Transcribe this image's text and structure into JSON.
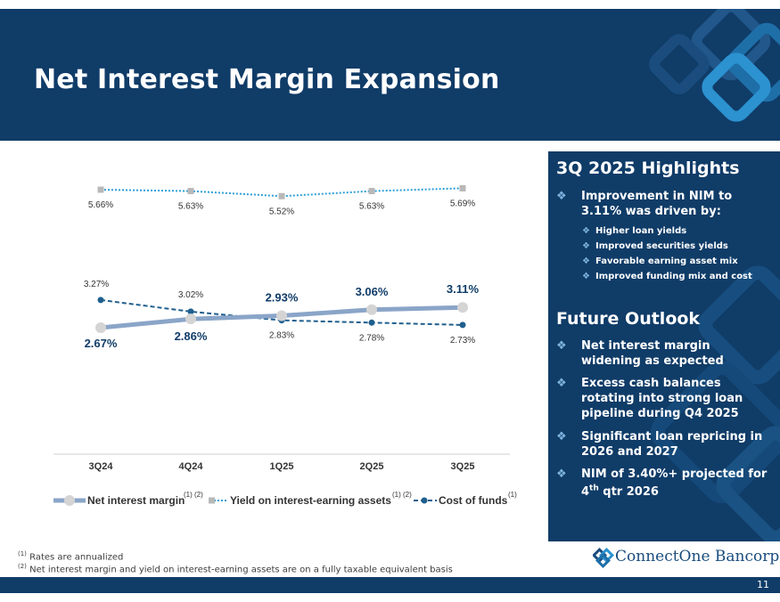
{
  "slide": {
    "title": "Net Interest Margin Expansion",
    "page_number": "11"
  },
  "chart_data": {
    "type": "line",
    "categories": [
      "3Q24",
      "4Q24",
      "1Q25",
      "2Q25",
      "3Q25"
    ],
    "series": [
      {
        "name": "Net interest margin",
        "superscript": "(1) (2)",
        "values": [
          2.67,
          2.86,
          2.93,
          3.06,
          3.11
        ],
        "labels": [
          "2.67%",
          "2.86%",
          "2.93%",
          "3.06%",
          "3.11%"
        ],
        "color": "#8aa5c8",
        "style": "solid-thick"
      },
      {
        "name": "Yield on interest-earning assets",
        "superscript": "(1) (2)",
        "values": [
          5.66,
          5.63,
          5.52,
          5.63,
          5.69
        ],
        "labels": [
          "5.66%",
          "5.63%",
          "5.52%",
          "5.63%",
          "5.69%"
        ],
        "color": "#2c9fd6",
        "style": "dotted"
      },
      {
        "name": "Cost of funds",
        "superscript": "(1)",
        "values": [
          3.27,
          3.02,
          2.83,
          2.78,
          2.73
        ],
        "labels": [
          "3.27%",
          "3.02%",
          "2.83%",
          "2.78%",
          "2.73%"
        ],
        "color": "#1f5f8e",
        "style": "dashed"
      }
    ],
    "title": "",
    "xlabel": "",
    "ylabel": "",
    "legend": "bottom",
    "grid": false
  },
  "highlights": {
    "heading": "3Q 2025 Highlights",
    "main": "Improvement in NIM to 3.11% was driven by:",
    "subs": [
      "Higher loan yields",
      "Improved securities yields",
      "Favorable earning asset mix",
      "Improved funding mix and cost"
    ]
  },
  "outlook": {
    "heading": "Future Outlook",
    "items": [
      "Net interest margin widening as expected",
      "Excess cash balances rotating into strong loan pipeline during Q4 2025",
      "Significant loan repricing in 2026 and 2027",
      "NIM of 3.40%+ projected for 4th qtr 2026"
    ]
  },
  "footnotes": [
    {
      "mark": "(1)",
      "text": "Rates are annualized"
    },
    {
      "mark": "(2)",
      "text": "Net interest margin and yield on interest-earning assets are on a fully taxable equivalent basis"
    }
  ],
  "brand": {
    "name": "ConnectOne Bancorp, Inc."
  },
  "colors": {
    "navy": "#103c68",
    "accent": "#7fb5e0"
  }
}
